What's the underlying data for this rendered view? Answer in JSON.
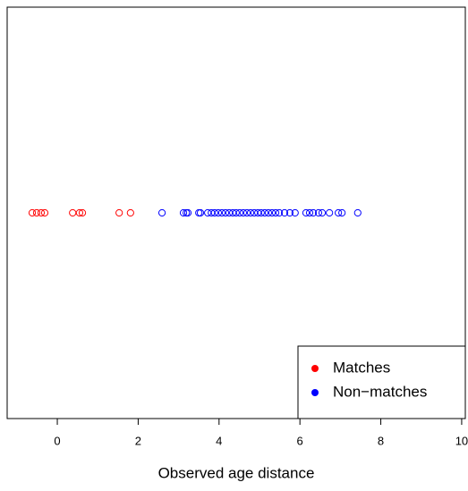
{
  "chart_data": {
    "type": "strip",
    "xlabel": "Observed age distance",
    "xlim": [
      -1.24,
      10.09
    ],
    "xticks": [
      0,
      2,
      4,
      6,
      8,
      10
    ],
    "legend": "bottom-right",
    "series": [
      {
        "name": "Matches",
        "color": "#ff0000",
        "x": [
          -0.62,
          -0.51,
          -0.4,
          -0.31,
          0.38,
          0.55,
          0.62,
          1.53,
          1.81
        ]
      },
      {
        "name": "Non−matches",
        "color": "#0000ff",
        "x": [
          2.59,
          3.12,
          3.19,
          3.23,
          3.5,
          3.54,
          3.72,
          3.81,
          3.89,
          3.98,
          4.07,
          4.16,
          4.25,
          4.34,
          4.42,
          4.51,
          4.6,
          4.69,
          4.78,
          4.87,
          4.96,
          5.04,
          5.13,
          5.22,
          5.31,
          5.4,
          5.49,
          5.62,
          5.75,
          5.88,
          6.15,
          6.24,
          6.33,
          6.46,
          6.55,
          6.73,
          6.95,
          7.04,
          7.43
        ]
      }
    ]
  }
}
